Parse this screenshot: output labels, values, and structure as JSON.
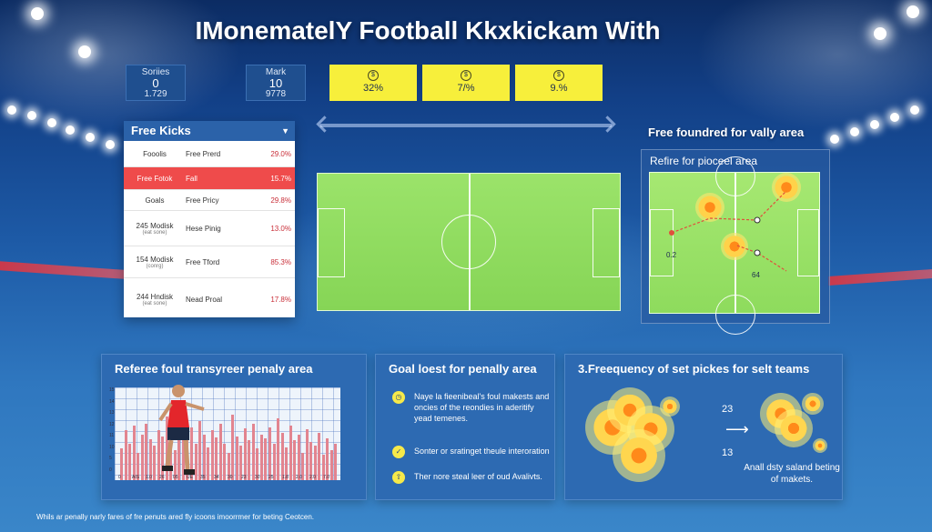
{
  "title": "IMonematelY Football Kkxkickam With",
  "top_stats": [
    {
      "label": "Soriies",
      "value": "0",
      "sub": "1.729"
    },
    {
      "label": "Mark",
      "value": "10",
      "sub": "9778"
    }
  ],
  "yellow_stats": [
    {
      "icon": "coin-icon",
      "value": "32%"
    },
    {
      "icon": "coin-icon",
      "value": "7/%"
    },
    {
      "icon": "coin-icon",
      "value": "9.%"
    }
  ],
  "free_kicks": {
    "title": "Free Kicks",
    "rows": [
      {
        "col1": "Fooolis",
        "col1_sub": "",
        "col2": "Free Prerd",
        "col3": "29.0%",
        "highlight": false
      },
      {
        "col1": "Free Fotok",
        "col1_sub": "",
        "col2": "Fall",
        "col3": "15.7%",
        "highlight": true
      },
      {
        "col1": "Goals",
        "col1_sub": "",
        "col2": "Free Pricy",
        "col3": "29.8%",
        "highlight": false
      },
      {
        "col1": "245 Modisk",
        "col1_sub": "(eat sone)",
        "col2": "Hese Pinig",
        "col3": "13.0%",
        "highlight": false
      },
      {
        "col1": "154 Modisk",
        "col1_sub": "(conrg)",
        "col2": "Free Tford",
        "col3": "85.3%",
        "highlight": false
      },
      {
        "col1": "244 Hndisk",
        "col1_sub": "(eat sone)",
        "col2": "Nead Proal",
        "col3": "17.8%",
        "highlight": false
      }
    ]
  },
  "right_panel": {
    "title": "Free foundred for vally area",
    "subtitle": "Refire for pioceel area",
    "label_a": "0.2",
    "label_b": "64"
  },
  "cards": {
    "referee": {
      "title": "Referee foul transyreer penaly area",
      "y_ticks": [
        "15",
        "14",
        "13",
        "12",
        "11",
        "10",
        "5",
        "0"
      ],
      "x_ticks": [
        "0",
        "AIS",
        "1.0",
        "26",
        "05",
        "UE",
        "35",
        "34",
        "30",
        "23",
        "30",
        "25",
        "1.8",
        "2.0",
        "2.0",
        "7.0"
      ],
      "bar_heights": [
        0.35,
        0.55,
        0.4,
        0.6,
        0.3,
        0.5,
        0.62,
        0.45,
        0.38,
        0.55,
        0.48,
        0.7,
        0.42,
        0.33,
        0.52,
        0.6,
        0.45,
        0.58,
        0.4,
        0.65,
        0.5,
        0.36,
        0.55,
        0.47,
        0.62,
        0.4,
        0.3,
        0.72,
        0.48,
        0.38,
        0.57,
        0.44,
        0.62,
        0.35,
        0.5,
        0.46,
        0.58,
        0.4,
        0.68,
        0.52,
        0.36,
        0.6,
        0.44,
        0.5,
        0.3,
        0.56,
        0.42,
        0.38,
        0.52,
        0.28,
        0.46,
        0.33,
        0.4
      ]
    },
    "goal": {
      "title": "Goal loest for penally area",
      "items": [
        {
          "icon": "clock-icon",
          "text": "Naye la fieenibeal's foul makests and oncies of the reondies in aderitify yead temenes."
        },
        {
          "icon": "check-icon",
          "text": "Sonter or sratinget theule interoration"
        },
        {
          "icon": "upload-icon",
          "text": "Ther nore steal leer of oud Avalivts."
        }
      ]
    },
    "frequency": {
      "title": "3.Freequency of set pickes for selt teams",
      "num_top": "23",
      "num_bottom": "13",
      "caption": "Anall dsty saland beting of makets."
    }
  },
  "footnote": "Whils ar penally narly fares of fre penuts ared fly icoons imoorrmer for beting Ceotcen.",
  "colors": {
    "accent_yellow": "#f7ef3b",
    "highlight_red": "#ef4b4b",
    "panel_blue": "#2b62a9",
    "pitch_green": "#8edb5d"
  }
}
